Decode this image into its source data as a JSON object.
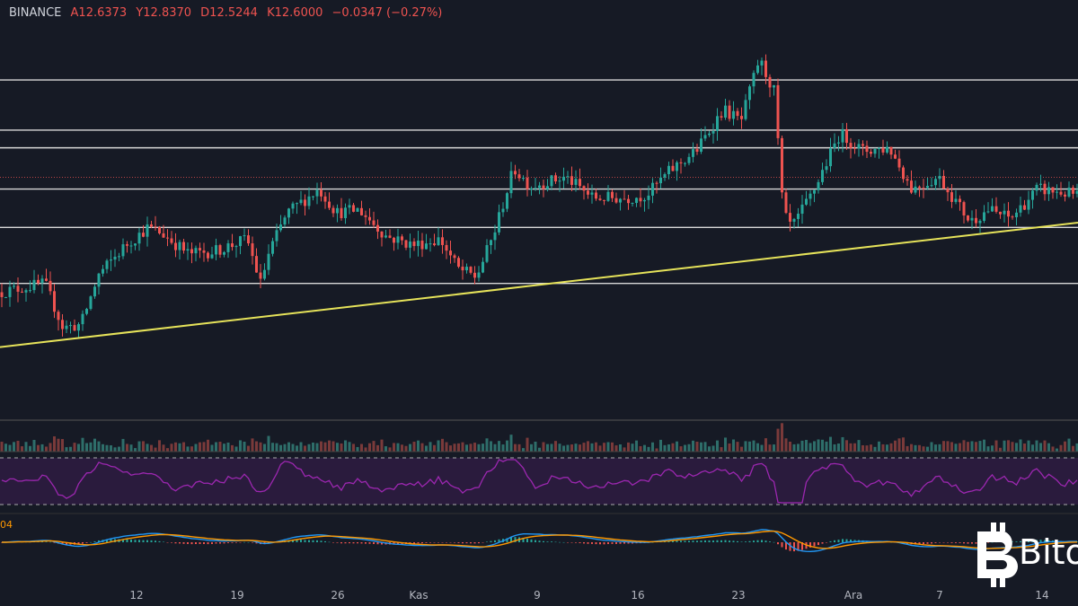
{
  "header": {
    "exchange": "BINANCE",
    "open": "A12.6373",
    "high": "Y12.8370",
    "low": "D12.5244",
    "close": "K12.6000",
    "change": "−0.0347 (−0.27%)"
  },
  "macd_label": "04",
  "watermark": "Bito",
  "colors": {
    "background": "#161a25",
    "up": "#26a69a",
    "down": "#ef5350",
    "trendline": "#e6e35a",
    "levels": "#d8d8d8",
    "rsi": "#9c27b0",
    "macd": "#2196f3",
    "signal": "#ff9800"
  },
  "chart_data": {
    "type": "candlestick",
    "x_ticks": [
      "12",
      "19",
      "26",
      "Kas",
      "9",
      "16",
      "23",
      "Ara",
      "7",
      "14"
    ],
    "price_path": [
      [
        0,
        12.2
      ],
      [
        50,
        12.35
      ],
      [
        70,
        11.6
      ],
      [
        90,
        11.65
      ],
      [
        110,
        12.5
      ],
      [
        140,
        13.0
      ],
      [
        165,
        13.3
      ],
      [
        180,
        13.2
      ],
      [
        210,
        12.85
      ],
      [
        240,
        12.9
      ],
      [
        275,
        13.1
      ],
      [
        290,
        12.35
      ],
      [
        300,
        12.9
      ],
      [
        320,
        13.55
      ],
      [
        355,
        13.95
      ],
      [
        375,
        13.55
      ],
      [
        400,
        13.6
      ],
      [
        430,
        13.15
      ],
      [
        460,
        13.0
      ],
      [
        490,
        13.1
      ],
      [
        510,
        12.6
      ],
      [
        530,
        12.45
      ],
      [
        550,
        13.2
      ],
      [
        572,
        14.3
      ],
      [
        590,
        14.0
      ],
      [
        630,
        14.15
      ],
      [
        660,
        13.8
      ],
      [
        700,
        13.8
      ],
      [
        720,
        13.85
      ],
      [
        745,
        14.25
      ],
      [
        775,
        14.6
      ],
      [
        805,
        15.3
      ],
      [
        825,
        15.1
      ],
      [
        845,
        16.15
      ],
      [
        862,
        15.6
      ],
      [
        872,
        13.5
      ],
      [
        882,
        13.3
      ],
      [
        905,
        13.9
      ],
      [
        935,
        14.9
      ],
      [
        960,
        14.6
      ],
      [
        990,
        14.65
      ],
      [
        1015,
        13.95
      ],
      [
        1045,
        14.15
      ],
      [
        1080,
        13.4
      ],
      [
        1100,
        13.6
      ],
      [
        1125,
        13.45
      ],
      [
        1155,
        13.95
      ],
      [
        1200,
        13.85
      ]
    ],
    "horizontal_levels": [
      15.8,
      14.95,
      14.65,
      13.95,
      13.3,
      12.35
    ],
    "current_price_line": 14.15,
    "trendline": {
      "from": [
        0,
        11.27
      ],
      "to": [
        1200,
        13.38
      ]
    },
    "indicators": [
      "Volume",
      "RSI",
      "MACD"
    ],
    "grid": false
  }
}
